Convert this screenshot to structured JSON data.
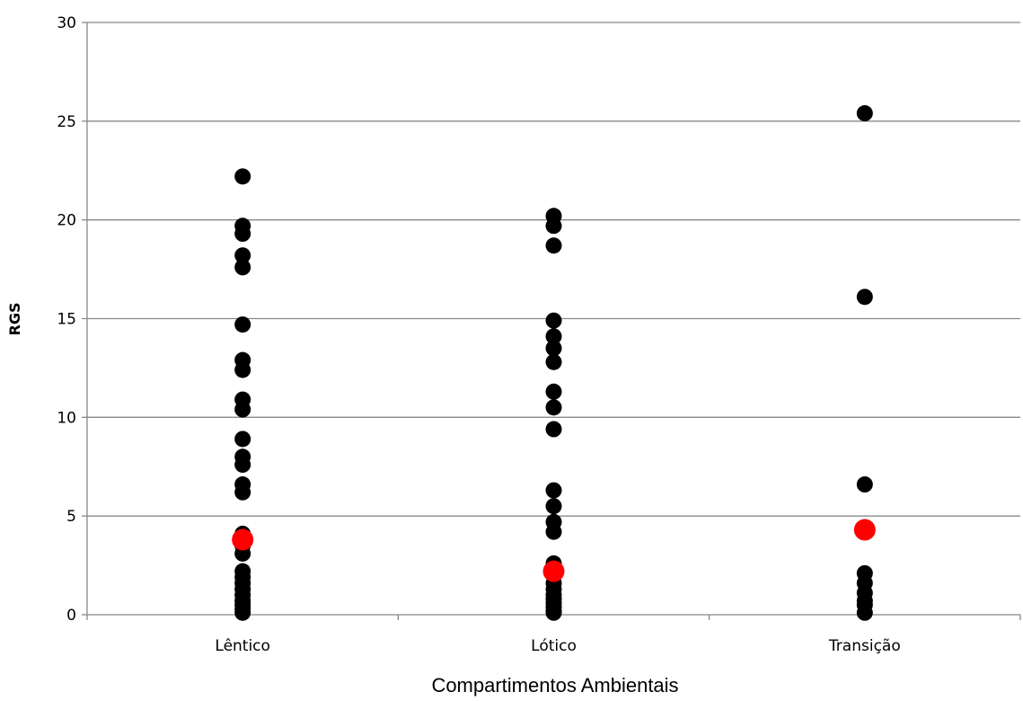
{
  "chart_data": {
    "type": "scatter",
    "title": "",
    "xlabel": "Compartimentos Ambientais",
    "ylabel": "RGS",
    "ylim": [
      0,
      30
    ],
    "yticks": [
      "0",
      "5",
      "10",
      "15",
      "20",
      "25",
      "30"
    ],
    "categories": [
      "Lêntico",
      "Lótico",
      "Transição"
    ],
    "grid": "horizontal",
    "legend": "none",
    "colors": {
      "points": "#000000",
      "highlight": "#ff0000",
      "grid": "#898989"
    },
    "series": [
      {
        "values": [
          [
            22.2,
            19.7,
            19.3,
            18.2,
            17.6,
            14.7,
            12.9,
            12.4,
            10.9,
            10.4,
            8.9,
            8.0,
            7.6,
            6.6,
            6.2,
            4.1,
            3.5,
            3.1,
            2.2,
            1.9,
            1.6,
            1.3,
            1.0,
            0.7,
            0.5,
            0.3,
            0.1
          ],
          [
            20.2,
            19.7,
            18.7,
            14.9,
            14.1,
            13.5,
            12.8,
            11.3,
            10.5,
            9.4,
            6.3,
            5.5,
            4.7,
            4.2,
            2.6,
            2.4,
            2.0,
            1.6,
            1.3,
            1.0,
            0.8,
            0.6,
            0.4,
            0.2,
            0.1
          ],
          [
            25.4,
            16.1,
            6.6,
            2.1,
            1.6,
            1.1,
            0.7,
            0.5,
            0.1
          ]
        ]
      },
      {
        "values": [
          3.8,
          2.2,
          4.3
        ]
      }
    ]
  }
}
